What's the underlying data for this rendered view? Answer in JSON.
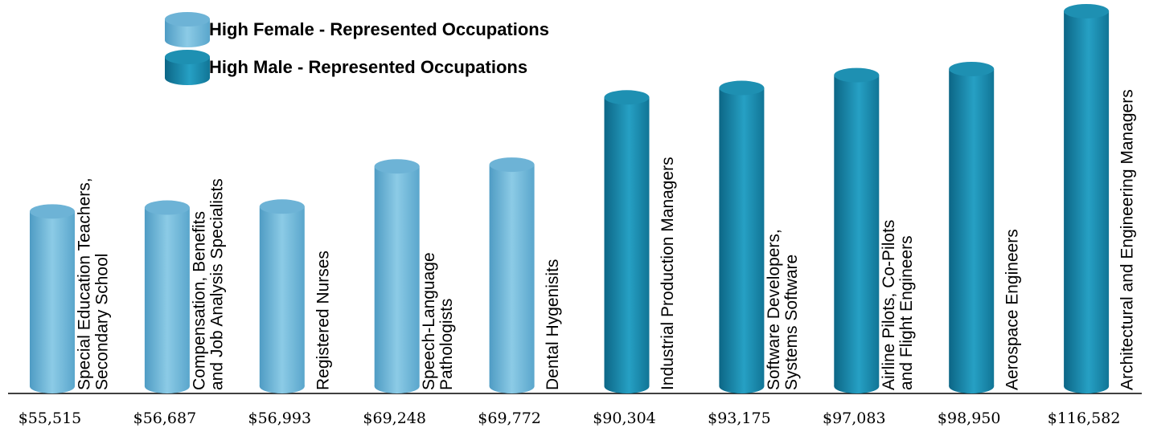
{
  "chart_data": {
    "type": "cylinder-bar",
    "categories": [
      [
        "Special Education Teachers,",
        "Secondary School"
      ],
      [
        "Compensation, Benefits",
        "and Job Analysis Specialists"
      ],
      [
        "Registered Nurses"
      ],
      [
        "Speech-Language",
        "Pathologists"
      ],
      [
        "Dental Hygenisits"
      ],
      [
        "Industrial Production Managers"
      ],
      [
        "Software Developers,",
        "Systems Software"
      ],
      [
        "Airline Pilots, Co-Pilots",
        "and Flight Engineers"
      ],
      [
        "Aerospace Engineers"
      ],
      [
        "Architectural and Engineering Managers"
      ]
    ],
    "series": [
      {
        "name": "High Female - Represented Occupations",
        "color": "#6db3d6",
        "values": [
          55515,
          56687,
          56993,
          69248,
          69772,
          null,
          null,
          null,
          null,
          null
        ]
      },
      {
        "name": "High Male - Represented Occupations",
        "color": "#1e90b2",
        "values": [
          null,
          null,
          null,
          null,
          null,
          90304,
          93175,
          97083,
          98950,
          116582
        ]
      }
    ],
    "value_labels": [
      "$55,515",
      "$56,687",
      "$56,993",
      "$69,248",
      "$69,772",
      "$90,304",
      "$93,175",
      "$97,083",
      "$98,950",
      "$116,582"
    ],
    "ylim": [
      0,
      120000
    ],
    "legend": "top-left"
  }
}
